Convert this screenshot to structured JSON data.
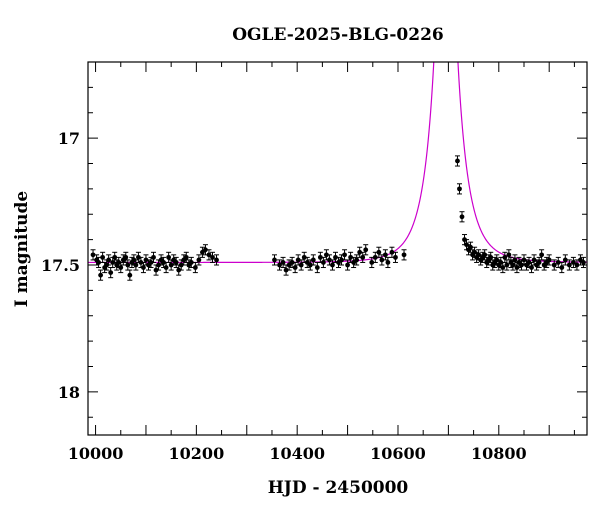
{
  "chart_data": {
    "type": "scatter",
    "title": "OGLE-2025-BLG-0226",
    "xlabel": "HJD - 2450000",
    "ylabel": "I magnitude",
    "xlim": [
      9985,
      10975
    ],
    "ylim": [
      18.17,
      16.7
    ],
    "y_inverted": true,
    "xticks": [
      10000,
      10200,
      10400,
      10600,
      10800
    ],
    "yticks": [
      17,
      17.5,
      18
    ],
    "grid": false,
    "colors": {
      "points": "#000000",
      "model": "#cc00cc"
    },
    "model": {
      "t0": 10695,
      "u0": 0.012,
      "tE": 45,
      "baseline": 17.49,
      "blend_fraction": 1.0
    },
    "series": [
      {
        "x": [
          9995,
          10002,
          10006,
          10010,
          10014,
          10018,
          10022,
          10026,
          10030,
          10034,
          10038,
          10042,
          10046,
          10050,
          10055,
          10060,
          10064,
          10068,
          10072,
          10076,
          10080,
          10085,
          10090,
          10095,
          10100,
          10105,
          10110,
          10115,
          10120,
          10125,
          10130,
          10135,
          10140,
          10145,
          10150,
          10155,
          10160,
          10165,
          10170,
          10175,
          10180,
          10185,
          10190,
          10198,
          10205,
          10212,
          10218,
          10225,
          10232,
          10240,
          10355,
          10365,
          10372,
          10378,
          10384,
          10390,
          10396,
          10402,
          10408,
          10414,
          10420,
          10426,
          10432,
          10440,
          10446,
          10452,
          10458,
          10464,
          10470,
          10476,
          10482,
          10488,
          10494,
          10500,
          10506,
          10512,
          10518,
          10524,
          10530,
          10536,
          10548,
          10555,
          10562,
          10568,
          10575,
          10580,
          10588,
          10595,
          10612,
          10718,
          10722,
          10727,
          10732,
          10736,
          10740,
          10744,
          10748,
          10752,
          10756,
          10760,
          10764,
          10768,
          10772,
          10776,
          10780,
          10784,
          10788,
          10792,
          10796,
          10800,
          10804,
          10808,
          10812,
          10816,
          10820,
          10824,
          10828,
          10832,
          10836,
          10840,
          10845,
          10850,
          10855,
          10860,
          10865,
          10870,
          10875,
          10880,
          10885,
          10890,
          10895,
          10900,
          10910,
          10918,
          10925,
          10932,
          10940,
          10948,
          10955,
          10962,
          10968
        ],
        "y": [
          17.46,
          17.48,
          17.49,
          17.54,
          17.47,
          17.51,
          17.5,
          17.48,
          17.53,
          17.49,
          17.47,
          17.5,
          17.49,
          17.51,
          17.48,
          17.47,
          17.5,
          17.54,
          17.49,
          17.48,
          17.5,
          17.47,
          17.49,
          17.51,
          17.48,
          17.5,
          17.49,
          17.47,
          17.52,
          17.5,
          17.48,
          17.49,
          17.51,
          17.47,
          17.5,
          17.48,
          17.49,
          17.52,
          17.5,
          17.48,
          17.47,
          17.5,
          17.49,
          17.51,
          17.48,
          17.45,
          17.44,
          17.46,
          17.47,
          17.48,
          17.48,
          17.5,
          17.49,
          17.52,
          17.5,
          17.49,
          17.51,
          17.48,
          17.5,
          17.47,
          17.49,
          17.5,
          17.48,
          17.51,
          17.47,
          17.49,
          17.46,
          17.48,
          17.5,
          17.47,
          17.49,
          17.48,
          17.46,
          17.5,
          17.47,
          17.49,
          17.48,
          17.45,
          17.47,
          17.44,
          17.49,
          17.47,
          17.45,
          17.48,
          17.46,
          17.49,
          17.45,
          17.47,
          17.46,
          17.09,
          17.2,
          17.31,
          17.4,
          17.42,
          17.44,
          17.43,
          17.46,
          17.45,
          17.47,
          17.46,
          17.48,
          17.47,
          17.46,
          17.49,
          17.48,
          17.47,
          17.5,
          17.49,
          17.48,
          17.5,
          17.49,
          17.51,
          17.47,
          17.5,
          17.46,
          17.49,
          17.5,
          17.48,
          17.51,
          17.49,
          17.5,
          17.48,
          17.5,
          17.49,
          17.51,
          17.48,
          17.5,
          17.49,
          17.46,
          17.5,
          17.49,
          17.48,
          17.5,
          17.49,
          17.51,
          17.48,
          17.5,
          17.49,
          17.5,
          17.48,
          17.49
        ]
      }
    ]
  }
}
